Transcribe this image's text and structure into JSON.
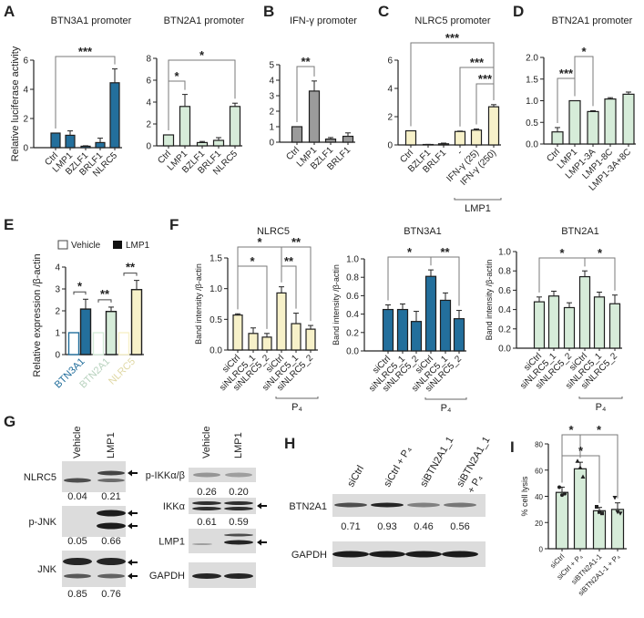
{
  "colors": {
    "blue": "#236f9c",
    "green": "#d6ecd9",
    "gray": "#9b9b9b",
    "yellow": "#f7f1c9",
    "outline": "#1e1e1e",
    "bracket": "#7a7a7a"
  },
  "panels": {
    "A": "A",
    "B": "B",
    "C": "C",
    "D": "D",
    "E": "E",
    "F": "F",
    "G": "G",
    "H": "H",
    "I": "I"
  },
  "chart_data": [
    {
      "id": "A1",
      "type": "bar",
      "title": "BTN3A1 promoter",
      "ylabel": "Relative luciferase activity",
      "yticks": [
        "0",
        "2",
        "4",
        "6"
      ],
      "ylim": [
        0,
        6
      ],
      "color": "blue",
      "categories": [
        "Ctrl",
        "LMP1",
        "BZLF1",
        "BRLF1",
        "NLRC5"
      ],
      "values": [
        1.0,
        0.85,
        0.1,
        0.35,
        4.45
      ],
      "errors": [
        0,
        0.3,
        0.03,
        0.3,
        0.95
      ],
      "significance": [
        {
          "from": 0,
          "to": 4,
          "label": "***"
        }
      ]
    },
    {
      "id": "A2",
      "type": "bar",
      "title": "BTN2A1 promoter",
      "ylabel": "",
      "yticks": [
        "0",
        "2",
        "4",
        "6",
        "8"
      ],
      "ylim": [
        0,
        8
      ],
      "color": "green",
      "categories": [
        "Ctrl",
        "LMP1",
        "BZLF1",
        "BRLF1",
        "NLRC5"
      ],
      "values": [
        1.0,
        3.6,
        0.3,
        0.5,
        3.6
      ],
      "errors": [
        0,
        1.1,
        0.1,
        0.25,
        0.3
      ],
      "significance": [
        {
          "from": 0,
          "to": 1,
          "label": "*"
        },
        {
          "from": 0,
          "to": 4,
          "label": "*"
        }
      ]
    },
    {
      "id": "B",
      "type": "bar",
      "title": "IFN-γ promoter",
      "ylabel": "",
      "yticks": [
        "0",
        "1",
        "2",
        "3",
        "4",
        "5"
      ],
      "ylim": [
        0,
        5
      ],
      "color": "gray",
      "categories": [
        "Ctrl",
        "LMP1",
        "BZLF1",
        "BRLF1"
      ],
      "values": [
        1.0,
        3.3,
        0.2,
        0.38
      ],
      "errors": [
        0,
        0.65,
        0.1,
        0.22
      ],
      "significance": [
        {
          "from": 0,
          "to": 1,
          "label": "**"
        }
      ]
    },
    {
      "id": "C",
      "type": "bar",
      "title": "NLRC5 promoter",
      "ylabel": "",
      "yticks": [
        "0",
        "2",
        "4",
        "6"
      ],
      "ylim": [
        0,
        6
      ],
      "color": "yellow",
      "categories": [
        "Ctrl",
        "BZLF1",
        "BRLF1",
        "-",
        "IFN-γ (25)",
        "IFN-γ (250)"
      ],
      "values": [
        1.0,
        0.03,
        0.08,
        0.95,
        1.05,
        2.7
      ],
      "errors": [
        0,
        0.01,
        0.05,
        0.03,
        0.08,
        0.15
      ],
      "significance": [
        {
          "from": 0,
          "to": 5,
          "label": "***"
        },
        {
          "from": 3,
          "to": 5,
          "label": "***"
        },
        {
          "from": 4,
          "to": 5,
          "label": "***"
        }
      ],
      "groups": [
        {
          "from": 3,
          "to": 5,
          "label": "LMP1"
        }
      ]
    },
    {
      "id": "D",
      "type": "bar",
      "title": "BTN2A1 promoter",
      "ylabel": "",
      "yticks": [
        "0.0",
        "0.5",
        "1.0",
        "1.5",
        "2.0"
      ],
      "ylim": [
        0,
        2
      ],
      "color": "green",
      "categories": [
        "Ctrl",
        "LMP1",
        "LMP1-3A",
        "LMP1-8C",
        "LMP1-3A+8C"
      ],
      "values": [
        0.28,
        1.0,
        0.75,
        1.04,
        1.15
      ],
      "errors": [
        0.1,
        0,
        0.02,
        0.03,
        0.05
      ],
      "significance": [
        {
          "from": 0,
          "to": 1,
          "label": "***"
        },
        {
          "from": 1,
          "to": 2,
          "label": "*"
        }
      ]
    },
    {
      "id": "E",
      "type": "bar",
      "title": "",
      "ylabel": "Relative expression /β-actin",
      "yticks": [
        "0",
        "1",
        "2",
        "3",
        "4"
      ],
      "ylim": [
        0,
        4
      ],
      "categories": [
        "BTN3A1",
        "BTN2A1",
        "NLRC5"
      ],
      "category_colors": [
        "blue",
        "green",
        "yellow"
      ],
      "legend": [
        "Vehicle",
        "LMP1"
      ],
      "series": [
        {
          "name": "Vehicle",
          "values": [
            1.0,
            1.0,
            1.0
          ],
          "errors": [
            0,
            0,
            0
          ]
        },
        {
          "name": "LMP1",
          "values": [
            2.08,
            1.97,
            2.97
          ],
          "errors": [
            0.45,
            0.2,
            0.42
          ]
        }
      ],
      "significance": [
        "*",
        "**",
        "**"
      ]
    },
    {
      "id": "F1",
      "type": "bar",
      "title": "NLRC5",
      "ylabel": "Band intensity /β-actin",
      "yticks": [
        "0.0",
        "0.5",
        "1.0",
        "1.5"
      ],
      "ylim": [
        0,
        1.5
      ],
      "color": "yellow",
      "categories": [
        "siCtrl",
        "siNLRC5_1",
        "siNLRC5_2",
        "siCtrl",
        "siNLRC5_1",
        "siNLRC5_2"
      ],
      "values": [
        0.57,
        0.27,
        0.21,
        0.93,
        0.43,
        0.34
      ],
      "errors": [
        0.02,
        0.09,
        0.06,
        0.1,
        0.17,
        0.06
      ],
      "significance": [
        {
          "from": 0,
          "to": 3,
          "label": "*"
        },
        {
          "from": 3,
          "to": 5,
          "label": "**"
        },
        {
          "from": 0,
          "to": 2,
          "label": "*"
        },
        {
          "from": 3,
          "to": 4,
          "label": "**"
        }
      ],
      "groups": [
        {
          "from": 3,
          "to": 5,
          "label": "P₄"
        }
      ]
    },
    {
      "id": "F2",
      "type": "bar",
      "title": "BTN3A1",
      "ylabel": "Band intensity /β-actin",
      "yticks": [
        "0.0",
        "0.2",
        "0.4",
        "0.6",
        "0.8",
        "1.0"
      ],
      "ylim": [
        0,
        1.0
      ],
      "color": "blue",
      "categories": [
        "siCtrl",
        "siNLRC5_1",
        "siNLRC5_2",
        "siCtrl",
        "siNLRC5_1",
        "siNLRC5_2"
      ],
      "values": [
        0.45,
        0.45,
        0.32,
        0.81,
        0.55,
        0.35
      ],
      "errors": [
        0.05,
        0.06,
        0.11,
        0.07,
        0.08,
        0.09
      ],
      "significance": [
        {
          "from": 0,
          "to": 3,
          "label": "*"
        },
        {
          "from": 3,
          "to": 5,
          "label": "**"
        }
      ],
      "groups": [
        {
          "from": 3,
          "to": 5,
          "label": "P₄"
        }
      ]
    },
    {
      "id": "F3",
      "type": "bar",
      "title": "BTN2A1",
      "ylabel": "Band intensity /β-actin",
      "yticks": [
        "0.0",
        "0.2",
        "0.4",
        "0.6",
        "0.8",
        "1.0"
      ],
      "ylim": [
        0,
        1.0
      ],
      "color": "green",
      "categories": [
        "siCtrl",
        "siNLRC5_1",
        "siNLRC5_2",
        "siCtrl",
        "siNLRC5_1",
        "siNLRC5_2"
      ],
      "values": [
        0.48,
        0.54,
        0.42,
        0.74,
        0.53,
        0.46
      ],
      "errors": [
        0.05,
        0.05,
        0.05,
        0.06,
        0.05,
        0.09
      ],
      "significance": [
        {
          "from": 0,
          "to": 3,
          "label": "*"
        },
        {
          "from": 3,
          "to": 5,
          "label": "*"
        }
      ],
      "groups": [
        {
          "from": 3,
          "to": 5,
          "label": "P₄"
        }
      ]
    },
    {
      "id": "I",
      "type": "bar",
      "title": "",
      "ylabel": "% cell lysis",
      "yticks": [
        "0",
        "20",
        "40",
        "60",
        "80"
      ],
      "ylim": [
        0,
        80
      ],
      "color": "green",
      "categories": [
        "siCtrl",
        "siCtrl + P₄",
        "siBTN2A1-1",
        "siBTN2A1-1 + P₄"
      ],
      "values": [
        43,
        61,
        29,
        30
      ],
      "errors": [
        4,
        5,
        2.5,
        5
      ],
      "points": [
        {
          "marker": "circle",
          "values": [
            47,
            41,
            42
          ]
        },
        {
          "marker": "triangle",
          "values": [
            67,
            62,
            55
          ]
        },
        {
          "marker": "square",
          "values": [
            32,
            28,
            27
          ]
        },
        {
          "marker": "triangle-down",
          "values": [
            39,
            28,
            27
          ]
        }
      ],
      "significance": [
        {
          "from": 0,
          "to": 1,
          "label": "*"
        },
        {
          "from": 1,
          "to": 3,
          "label": "*"
        },
        {
          "from": 0,
          "to": 2,
          "label": "*"
        }
      ]
    }
  ],
  "blots": {
    "G_left": {
      "columns": [
        "Vehicle",
        "LMP1"
      ],
      "rows": [
        {
          "label": "NLRC5",
          "values": [
            "0.04",
            "0.21"
          ]
        },
        {
          "label": "p-JNK",
          "values": [
            "0.05",
            "0.66"
          ]
        },
        {
          "label": "JNK",
          "values": [
            "0.85",
            "0.76"
          ]
        }
      ]
    },
    "G_right": {
      "columns": [
        "Vehicle",
        "LMP1"
      ],
      "rows": [
        {
          "label": "p-IKKα/β",
          "values": [
            "0.26",
            "0.20"
          ]
        },
        {
          "label": "IKKα",
          "values": [
            "0.61",
            "0.59"
          ]
        },
        {
          "label": "LMP1",
          "values": []
        },
        {
          "label": "GAPDH",
          "values": []
        }
      ]
    },
    "H": {
      "columns": [
        [
          "siCtrl"
        ],
        [
          "siCtrl + P₄"
        ],
        [
          "siBTN2A1_1"
        ],
        [
          "siBTN2A1_1",
          "+ P₄"
        ]
      ],
      "rows": [
        {
          "label": "BTN2A1",
          "values": [
            "0.71",
            "0.93",
            "0.46",
            "0.56"
          ]
        },
        {
          "label": "GAPDH",
          "values": []
        }
      ]
    }
  }
}
